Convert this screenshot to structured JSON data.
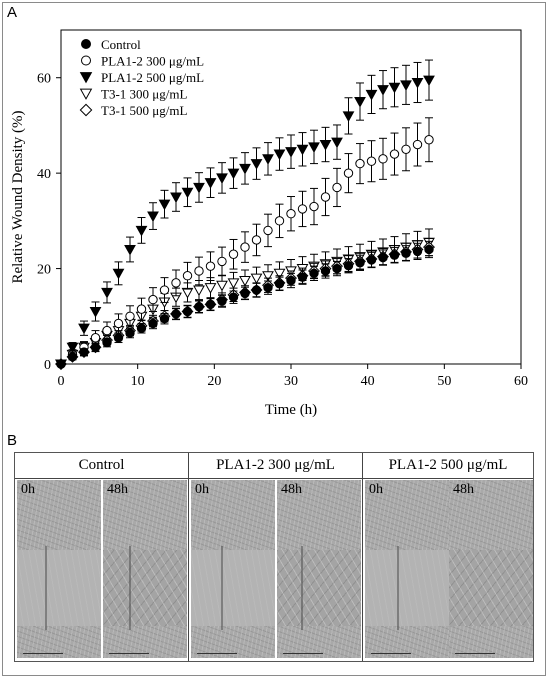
{
  "panel_labels": {
    "a": "A",
    "b": "B"
  },
  "chart_data": {
    "type": "scatter",
    "ylabel": "Relative Wound Density (%)",
    "xlabel": "Time (h)",
    "xlim": [
      0,
      60
    ],
    "ylim": [
      0,
      70
    ],
    "xticks": [
      0,
      10,
      20,
      30,
      40,
      50,
      60
    ],
    "yticks": [
      0,
      20,
      40,
      60
    ],
    "legend_position": "top-left",
    "x": [
      0,
      1.5,
      3,
      4.5,
      6,
      7.5,
      9,
      10.5,
      12,
      13.5,
      15,
      16.5,
      18,
      19.5,
      21,
      22.5,
      24,
      25.5,
      27,
      28.5,
      30,
      31.5,
      33,
      34.5,
      36,
      37.5,
      39,
      40.5,
      42,
      43.5,
      45,
      46.5,
      48
    ],
    "series": [
      {
        "name": "Control",
        "marker": "circle-filled",
        "values": [
          0,
          1.5,
          2.5,
          3.5,
          4.5,
          5.5,
          6.5,
          7.5,
          8.5,
          9.5,
          10.5,
          11.0,
          12.0,
          12.5,
          13.2,
          14.0,
          14.8,
          15.5,
          16.0,
          16.8,
          17.5,
          18.2,
          19.0,
          19.5,
          20.0,
          20.6,
          21.2,
          21.8,
          22.3,
          22.8,
          23.2,
          23.6,
          24.0
        ],
        "errors": [
          0,
          0.6,
          0.7,
          0.8,
          0.9,
          1.0,
          1.0,
          1.0,
          1.1,
          1.1,
          1.1,
          1.2,
          1.2,
          1.2,
          1.3,
          1.3,
          1.3,
          1.4,
          1.4,
          1.4,
          1.5,
          1.5,
          1.5,
          1.5,
          1.5,
          1.5,
          1.6,
          1.6,
          1.6,
          1.6,
          1.6,
          1.7,
          1.7
        ]
      },
      {
        "name": "PLA1-2 300 μg/mL",
        "marker": "circle-open",
        "values": [
          0,
          2.0,
          3.5,
          5.5,
          7.0,
          8.5,
          10.0,
          11.5,
          13.5,
          15.5,
          17.0,
          18.5,
          19.5,
          20.5,
          21.5,
          23.0,
          24.5,
          26.0,
          28.0,
          30.0,
          31.5,
          32.5,
          33.0,
          35.0,
          37.0,
          40.0,
          42.0,
          42.5,
          43.0,
          44.0,
          45.0,
          46.0,
          47.0
        ],
        "errors": [
          0,
          1.0,
          1.2,
          1.5,
          1.8,
          2.0,
          2.2,
          2.3,
          2.5,
          2.6,
          2.7,
          2.8,
          2.9,
          3.0,
          3.0,
          3.1,
          3.2,
          3.3,
          3.4,
          3.5,
          3.6,
          3.7,
          3.8,
          3.9,
          4.0,
          4.1,
          4.2,
          4.3,
          4.3,
          4.4,
          4.5,
          4.5,
          4.6
        ]
      },
      {
        "name": "PLA1-2 500 μg/mL",
        "marker": "triangle-down-filled",
        "values": [
          0,
          3.5,
          7.5,
          11.0,
          15.0,
          19.0,
          24.0,
          28.0,
          31.0,
          33.5,
          35.0,
          36.0,
          37.0,
          38.0,
          39.0,
          40.0,
          41.0,
          42.0,
          43.0,
          44.0,
          44.5,
          45.0,
          45.5,
          46.0,
          46.5,
          52.0,
          55.0,
          56.5,
          57.5,
          58.0,
          58.5,
          59.0,
          59.5
        ],
        "errors": [
          0,
          1.0,
          1.5,
          2.0,
          2.2,
          2.4,
          2.6,
          2.7,
          2.8,
          2.9,
          3.0,
          3.0,
          3.1,
          3.1,
          3.2,
          3.2,
          3.3,
          3.3,
          3.4,
          3.4,
          3.5,
          3.5,
          3.5,
          3.6,
          3.6,
          3.8,
          3.9,
          4.0,
          4.0,
          4.1,
          4.1,
          4.2,
          4.2
        ]
      },
      {
        "name": "T3-1 300 μg/mL",
        "marker": "triangle-down-open",
        "values": [
          0,
          2.0,
          3.5,
          4.5,
          6.0,
          7.0,
          8.5,
          10.0,
          11.5,
          13.0,
          14.0,
          15.0,
          15.5,
          16.0,
          16.5,
          17.0,
          17.5,
          18.0,
          18.5,
          19.0,
          19.5,
          20.0,
          20.5,
          21.0,
          21.5,
          22.0,
          22.5,
          23.0,
          23.5,
          24.0,
          24.5,
          25.0,
          25.5
        ],
        "errors": [
          0,
          0.8,
          1.0,
          1.2,
          1.3,
          1.4,
          1.5,
          1.6,
          1.7,
          1.8,
          1.9,
          2.0,
          2.0,
          2.1,
          2.1,
          2.2,
          2.2,
          2.3,
          2.3,
          2.4,
          2.4,
          2.5,
          2.5,
          2.5,
          2.6,
          2.6,
          2.6,
          2.7,
          2.7,
          2.7,
          2.8,
          2.8,
          2.8
        ]
      },
      {
        "name": "T3-1 500 μg/mL",
        "marker": "diamond-open",
        "values": [
          0,
          1.5,
          2.5,
          3.5,
          5.0,
          6.0,
          7.0,
          8.0,
          9.0,
          10.0,
          10.5,
          11.0,
          12.0,
          12.5,
          13.5,
          14.5,
          15.0,
          15.5,
          16.5,
          17.0,
          18.0,
          18.5,
          19.5,
          20.0,
          20.5,
          21.0,
          21.5,
          22.0,
          22.5,
          23.0,
          23.5,
          24.0,
          24.5
        ],
        "errors": [
          0,
          0.6,
          0.8,
          0.9,
          1.0,
          1.0,
          1.1,
          1.1,
          1.2,
          1.2,
          1.2,
          1.3,
          1.3,
          1.3,
          1.4,
          1.4,
          1.4,
          1.5,
          1.5,
          1.5,
          1.5,
          1.6,
          1.6,
          1.6,
          1.6,
          1.7,
          1.7,
          1.7,
          1.7,
          1.8,
          1.8,
          1.8,
          1.8
        ]
      }
    ]
  },
  "panel_b": {
    "groups": [
      {
        "title": "Control",
        "timepoints": [
          "0h",
          "48h"
        ]
      },
      {
        "title": "PLA1-2 300 μg/mL",
        "timepoints": [
          "0h",
          "48h"
        ]
      },
      {
        "title": "PLA1-2 500 μg/mL",
        "timepoints": [
          "0h",
          "48h"
        ]
      }
    ]
  }
}
